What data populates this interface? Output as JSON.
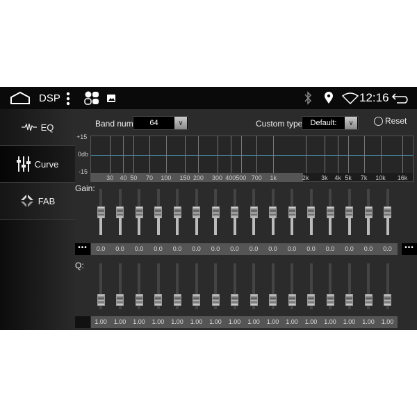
{
  "status_bar": {
    "title": "DSP",
    "time": "12:16",
    "icons": [
      "home-icon",
      "menu-dots-icon",
      "apps-icon",
      "image-icon",
      "bluetooth-icon",
      "location-icon",
      "wifi-icon",
      "back-icon"
    ]
  },
  "sidebar": {
    "items": [
      {
        "label": "EQ",
        "icon": "waveform-icon"
      },
      {
        "label": "Curve",
        "icon": "sliders-icon",
        "selected": true
      },
      {
        "label": "FAB",
        "icon": "fader-balance-icon"
      }
    ]
  },
  "controls": {
    "band_num_label": "Band num:",
    "band_num_value": "64",
    "custom_type_label": "Custom type:",
    "custom_type_value": "Default:",
    "reset_label": "Reset"
  },
  "chart_data": {
    "type": "line",
    "y_tick_labels": [
      "+15",
      "0db",
      "-15"
    ],
    "ylim": [
      -15,
      15
    ],
    "x_scale": "log",
    "xlim": [
      20,
      20000
    ],
    "x_ticks": [
      {
        "label": "30",
        "f": 30
      },
      {
        "label": "40",
        "f": 40
      },
      {
        "label": "50",
        "f": 50
      },
      {
        "label": "70",
        "f": 70
      },
      {
        "label": "100",
        "f": 100
      },
      {
        "label": "150",
        "f": 150
      },
      {
        "label": "200",
        "f": 200
      },
      {
        "label": "300",
        "f": 300
      },
      {
        "label": "400",
        "f": 400
      },
      {
        "label": "500",
        "f": 500
      },
      {
        "label": "700",
        "f": 700
      },
      {
        "label": "1k",
        "f": 1000
      },
      {
        "label": "2k",
        "f": 2000
      },
      {
        "label": "3k",
        "f": 3000
      },
      {
        "label": "4k",
        "f": 4000
      },
      {
        "label": "5k",
        "f": 5000
      },
      {
        "label": "7k",
        "f": 7000
      },
      {
        "label": "10k",
        "f": 10000
      },
      {
        "label": "16k",
        "f": 16000
      }
    ],
    "curve_db": 0,
    "grid": true,
    "curve_color": "#4a90a8"
  },
  "gain": {
    "label": "Gain:",
    "more": "•••",
    "range_db": [
      -15,
      15
    ],
    "values": [
      "0.0",
      "0.0",
      "0.0",
      "0.0",
      "0.0",
      "0.0",
      "0.0",
      "0.0",
      "0.0",
      "0.0",
      "0.0",
      "0.0",
      "0.0",
      "0.0",
      "0.0",
      "0.0"
    ]
  },
  "q": {
    "label": "Q:",
    "slider_level": 0.1,
    "values": [
      "1.00",
      "1.00",
      "1.00",
      "1.00",
      "1.00",
      "1.00",
      "1.00",
      "1.00",
      "1.00",
      "1.00",
      "1.00",
      "1.00",
      "1.00",
      "1.00",
      "1.00",
      "1.00"
    ]
  }
}
